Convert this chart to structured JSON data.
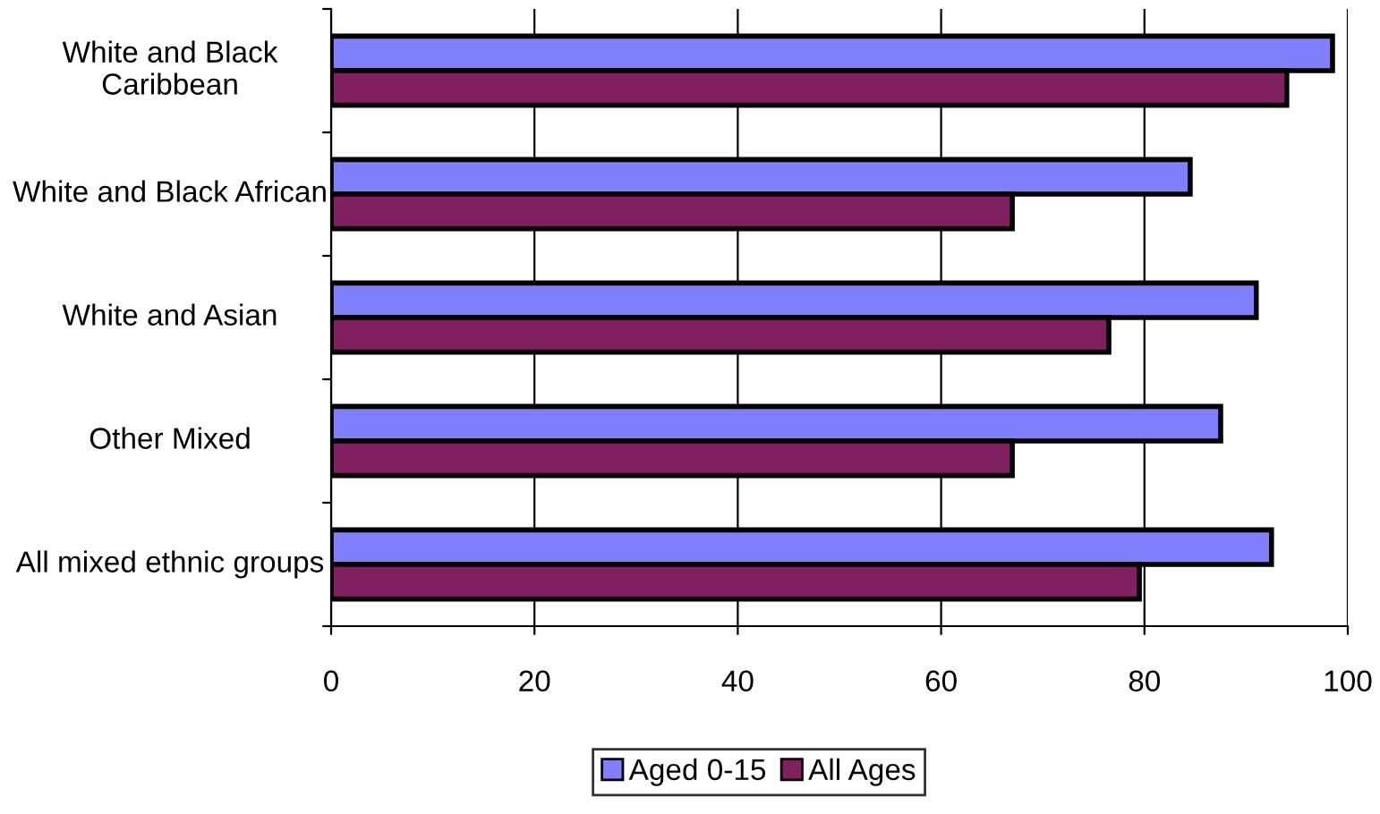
{
  "chart_data": {
    "type": "bar",
    "orientation": "horizontal",
    "categories": [
      "White and Black Caribbean",
      "White and Black African",
      "White and Asian",
      "Other Mixed",
      "All mixed ethnic groups"
    ],
    "series": [
      {
        "name": "Aged 0-15",
        "color": "#8080ff",
        "values": [
          98.5,
          84.5,
          91,
          87.5,
          92.5
        ]
      },
      {
        "name": "All Ages",
        "color": "#802060",
        "values": [
          94,
          67,
          76.5,
          67,
          79.5
        ]
      }
    ],
    "xlim": [
      0,
      100
    ],
    "xticks": [
      0,
      20,
      40,
      60,
      80,
      100
    ],
    "grid": "x",
    "legend": "bottom"
  }
}
